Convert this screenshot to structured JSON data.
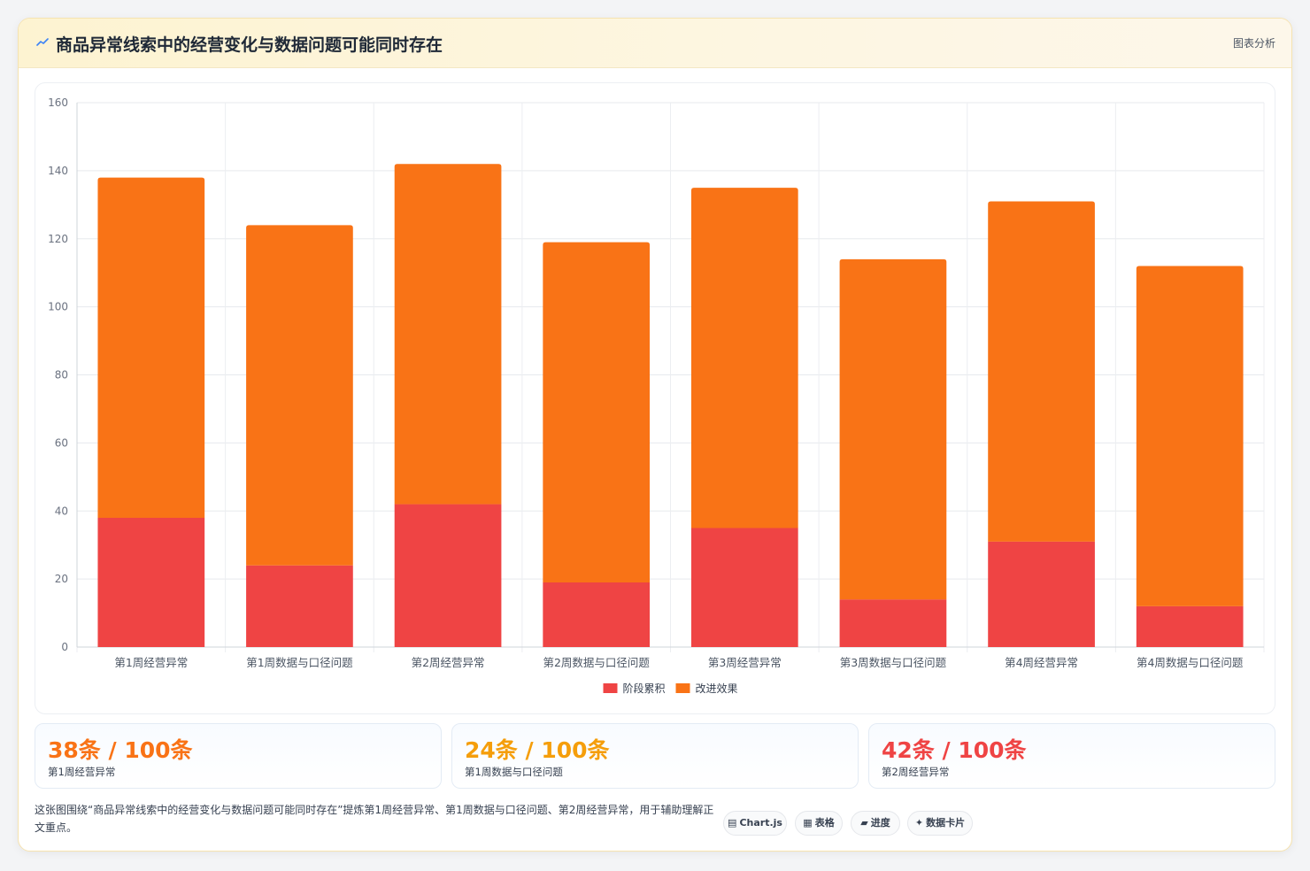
{
  "header": {
    "title": "商品异常线索中的经营变化与数据问题可能同时存在",
    "action_label": "图表分析",
    "icon": "trend-line-icon"
  },
  "chart_data": {
    "type": "bar",
    "stacked": true,
    "categories": [
      "第1周经营异常",
      "第1周数据与口径问题",
      "第2周经营异常",
      "第2周数据与口径问题",
      "第3周经营异常",
      "第3周数据与口径问题",
      "第4周经营异常",
      "第4周数据与口径问题"
    ],
    "series": [
      {
        "name": "阶段累积",
        "color": "#ef4444",
        "values": [
          38,
          24,
          42,
          19,
          35,
          14,
          31,
          12
        ]
      },
      {
        "name": "改进效果",
        "color": "#f97316",
        "values": [
          100,
          100,
          100,
          100,
          100,
          100,
          100,
          100
        ]
      }
    ],
    "ylim": [
      0,
      160
    ],
    "yticks": [
      0,
      20,
      40,
      60,
      80,
      100,
      120,
      140,
      160
    ],
    "grid": true,
    "legend_position": "bottom"
  },
  "stats": [
    {
      "value": "38条 / 100条",
      "label": "第1周经营异常",
      "color": "#f97316"
    },
    {
      "value": "24条 / 100条",
      "label": "第1周数据与口径问题",
      "color": "#f59e0b"
    },
    {
      "value": "42条 / 100条",
      "label": "第2周经营异常",
      "color": "#ef4444"
    }
  ],
  "footer": {
    "description": "这张图围绕“商品异常线索中的经营变化与数据问题可能同时存在”提炼第1周经营异常、第1周数据与口径问题、第2周经营异常，用于辅助理解正文重点。",
    "chips": [
      {
        "label": "Chart.js",
        "icon": "chart-icon",
        "glyph": "▤"
      },
      {
        "label": "表格",
        "icon": "table-icon",
        "glyph": "▦"
      },
      {
        "label": "进度",
        "icon": "progress-icon",
        "glyph": "▰"
      },
      {
        "label": "数据卡片",
        "icon": "sparkle-icon",
        "glyph": "✦"
      }
    ]
  }
}
